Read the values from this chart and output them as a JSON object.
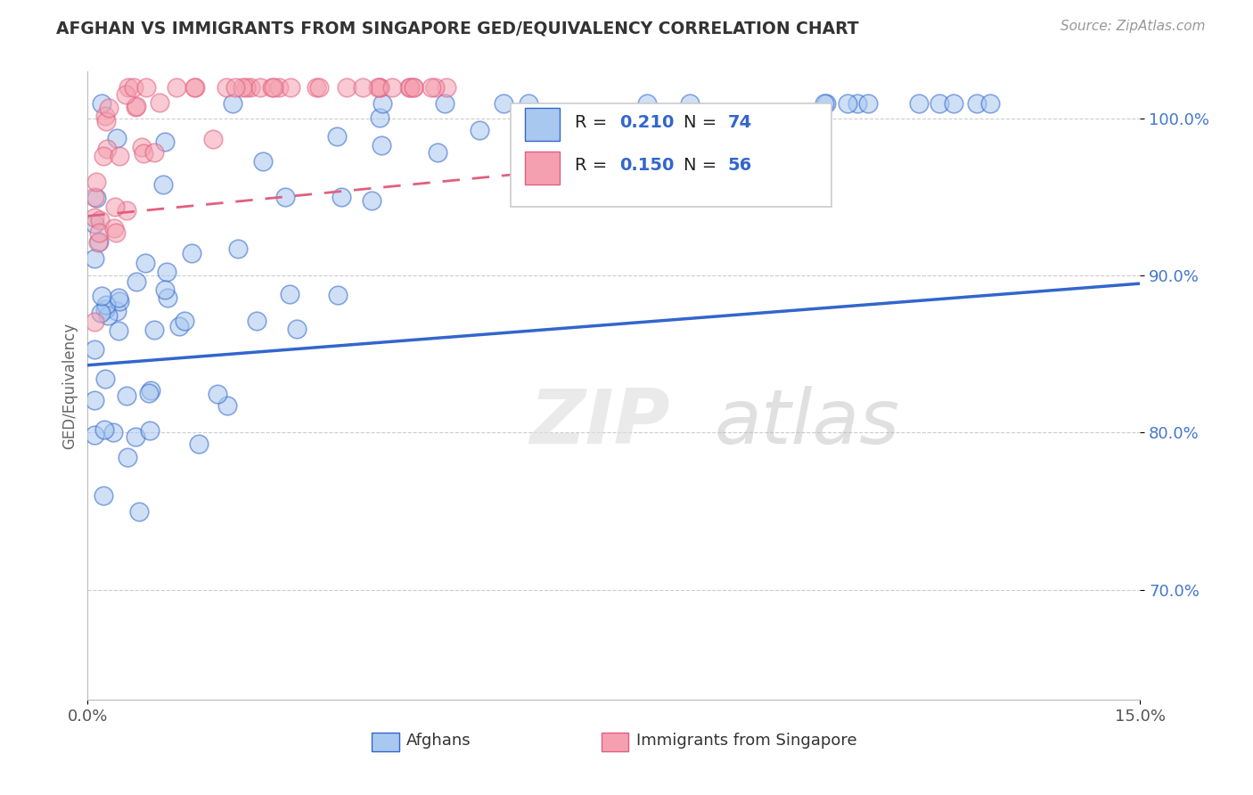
{
  "title": "AFGHAN VS IMMIGRANTS FROM SINGAPORE GED/EQUIVALENCY CORRELATION CHART",
  "source": "Source: ZipAtlas.com",
  "ylabel": "GED/Equivalency",
  "ytick_labels": [
    "70.0%",
    "80.0%",
    "90.0%",
    "100.0%"
  ],
  "ytick_values": [
    0.7,
    0.8,
    0.9,
    1.0
  ],
  "xmin": 0.0,
  "xmax": 0.15,
  "ymin": 0.63,
  "ymax": 1.03,
  "legend_r1": "0.210",
  "legend_n1": "74",
  "legend_r2": "0.150",
  "legend_n2": "56",
  "legend_label1": "Afghans",
  "legend_label2": "Immigrants from Singapore",
  "color_blue": "#A8C8F0",
  "color_pink": "#F5A0B0",
  "color_blue_line": "#3366CC",
  "color_pink_line": "#E06080",
  "watermark_zip": "ZIP",
  "watermark_atlas": "atlas",
  "blue_trend_x": [
    0.0,
    0.15
  ],
  "blue_trend_y": [
    0.843,
    0.895
  ],
  "pink_trend_x": [
    0.0,
    0.085
  ],
  "pink_trend_y": [
    0.938,
    0.975
  ]
}
